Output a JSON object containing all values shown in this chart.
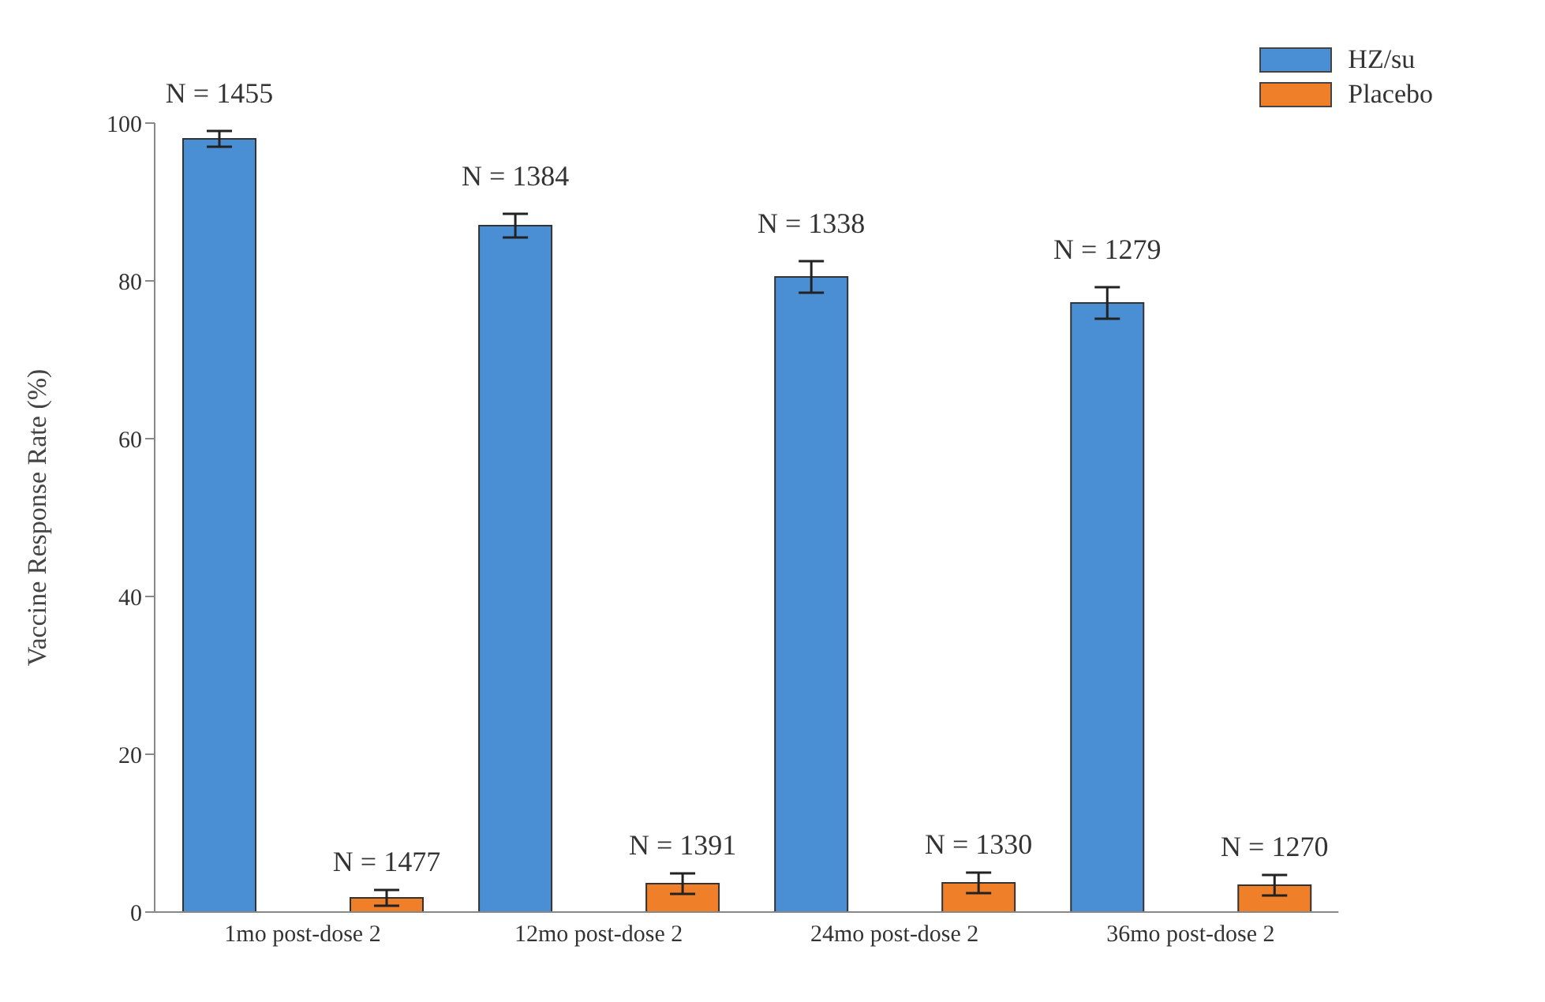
{
  "chart_data": {
    "type": "bar",
    "ylabel": "Vaccine Response Rate (%)",
    "categories": [
      "1mo post-dose 2",
      "12mo post-dose 2",
      "24mo post-dose 2",
      "36mo post-dose 2"
    ],
    "series": [
      {
        "name": "HZ/su",
        "color": "#4a8fd4",
        "values": [
          98.0,
          87.0,
          80.5,
          77.2
        ],
        "errors": [
          1,
          1.5,
          2,
          2
        ]
      },
      {
        "name": "Placebo",
        "color": "#f07f2a",
        "values": [
          1.8,
          3.6,
          3.7,
          3.4
        ],
        "errors": [
          1,
          1.3,
          1.3,
          1.3
        ]
      }
    ],
    "annotations": [
      "N = 1455",
      "N = 1477",
      "N = 1384",
      "N = 1391",
      "N = 1338",
      "N = 1330",
      "N = 1279",
      "N = 1270"
    ],
    "ylim": [
      0,
      100
    ],
    "yticks": [
      0,
      20,
      40,
      60,
      80,
      100
    ],
    "grid": false,
    "legend": "top right"
  }
}
